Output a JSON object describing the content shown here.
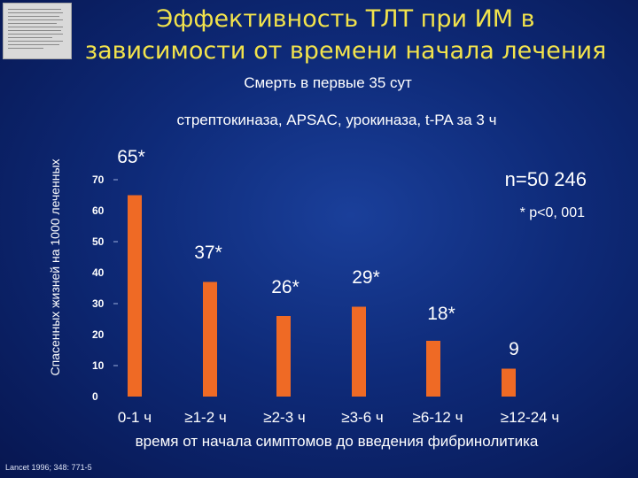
{
  "slide": {
    "title_line1": "Эффективность ТЛТ  при ИМ в",
    "title_line2": "зависимости от времени начала лечения",
    "subtitle": "Смерть в первые 35 сут",
    "drugs": "стрептокиназа, APSAC, урокиназа, t-PA за 3 ч",
    "n_label": "n=50 246",
    "p_label": "* p<0, 001",
    "citation": "Lancet 1996; 348: 771-5",
    "title_color": "#f2e34c",
    "bar_color": "#ef6a25"
  },
  "chart_data": {
    "type": "bar",
    "categories": [
      "0-1 ч",
      "≥1-2 ч",
      "≥2-3 ч",
      "≥3-6 ч",
      "≥6-12 ч",
      "≥12-24 ч"
    ],
    "values": [
      65,
      37,
      26,
      29,
      18,
      9
    ],
    "data_labels": [
      "65*",
      "37*",
      "26*",
      "29*",
      "18*",
      "9"
    ],
    "title": "",
    "xlabel": "время от начала симптомов до введения фибринолитика",
    "ylabel": "Спасенных  жизней на 1000 леченных",
    "ylim": [
      0,
      70
    ],
    "yticks": [
      0,
      10,
      20,
      30,
      40,
      50,
      60,
      70
    ],
    "grid": false
  }
}
